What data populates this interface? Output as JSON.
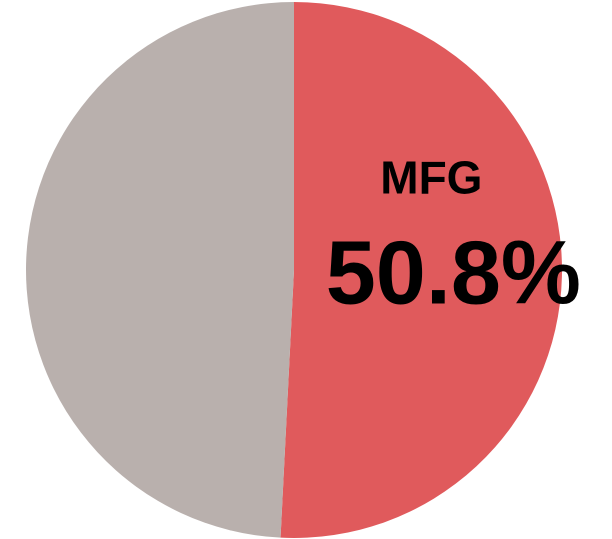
{
  "chart_data": {
    "type": "pie",
    "categories": [
      "MFG",
      null
    ],
    "values": [
      50.8,
      49.2
    ],
    "value_labels": [
      "50.8%",
      null
    ],
    "colors": [
      "#e05a5c",
      "#b9b0ad"
    ]
  }
}
